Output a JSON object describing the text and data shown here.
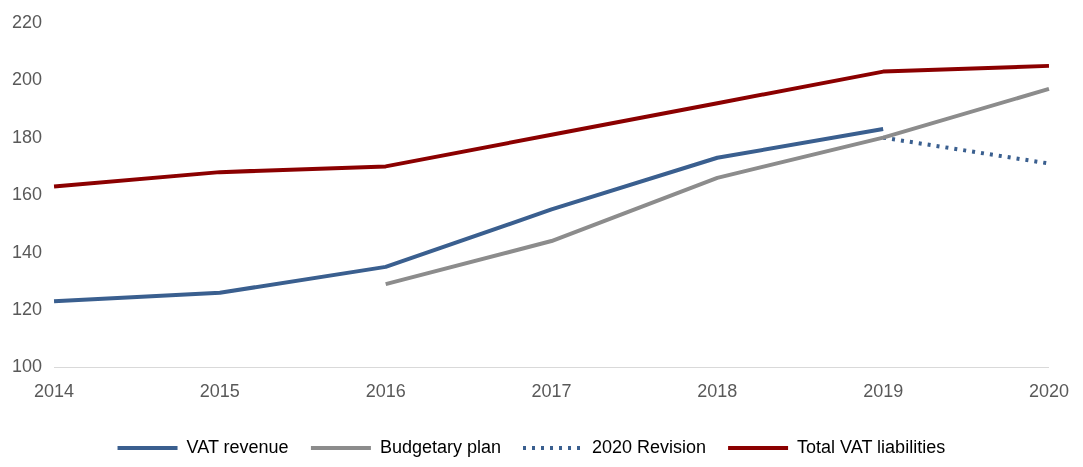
{
  "chart_data": {
    "type": "line",
    "categories": [
      "2014",
      "2015",
      "2016",
      "2017",
      "2018",
      "2019",
      "2020"
    ],
    "series": [
      {
        "name": "VAT revenue",
        "color": "#3a5f8f",
        "values": [
          123,
          126,
          135,
          155,
          173,
          183,
          null
        ]
      },
      {
        "name": "Budgetary plan",
        "color": "#8c8c8c",
        "values": [
          null,
          null,
          129,
          144,
          166,
          180,
          197
        ]
      },
      {
        "name": "2020 Revision",
        "color": "#3a5f8f",
        "line_style": "dotted",
        "values": [
          null,
          null,
          null,
          null,
          null,
          180,
          171
        ]
      },
      {
        "name": "Total VAT liabilities",
        "color": "#8b0000",
        "values": [
          163,
          168,
          170,
          181,
          192,
          203,
          205
        ]
      }
    ],
    "ylim": [
      100,
      220
    ],
    "yticks": [
      100,
      120,
      140,
      160,
      180,
      200,
      220
    ],
    "grid": false,
    "legend": "bottom",
    "marker": "none",
    "line_style": "solid"
  }
}
